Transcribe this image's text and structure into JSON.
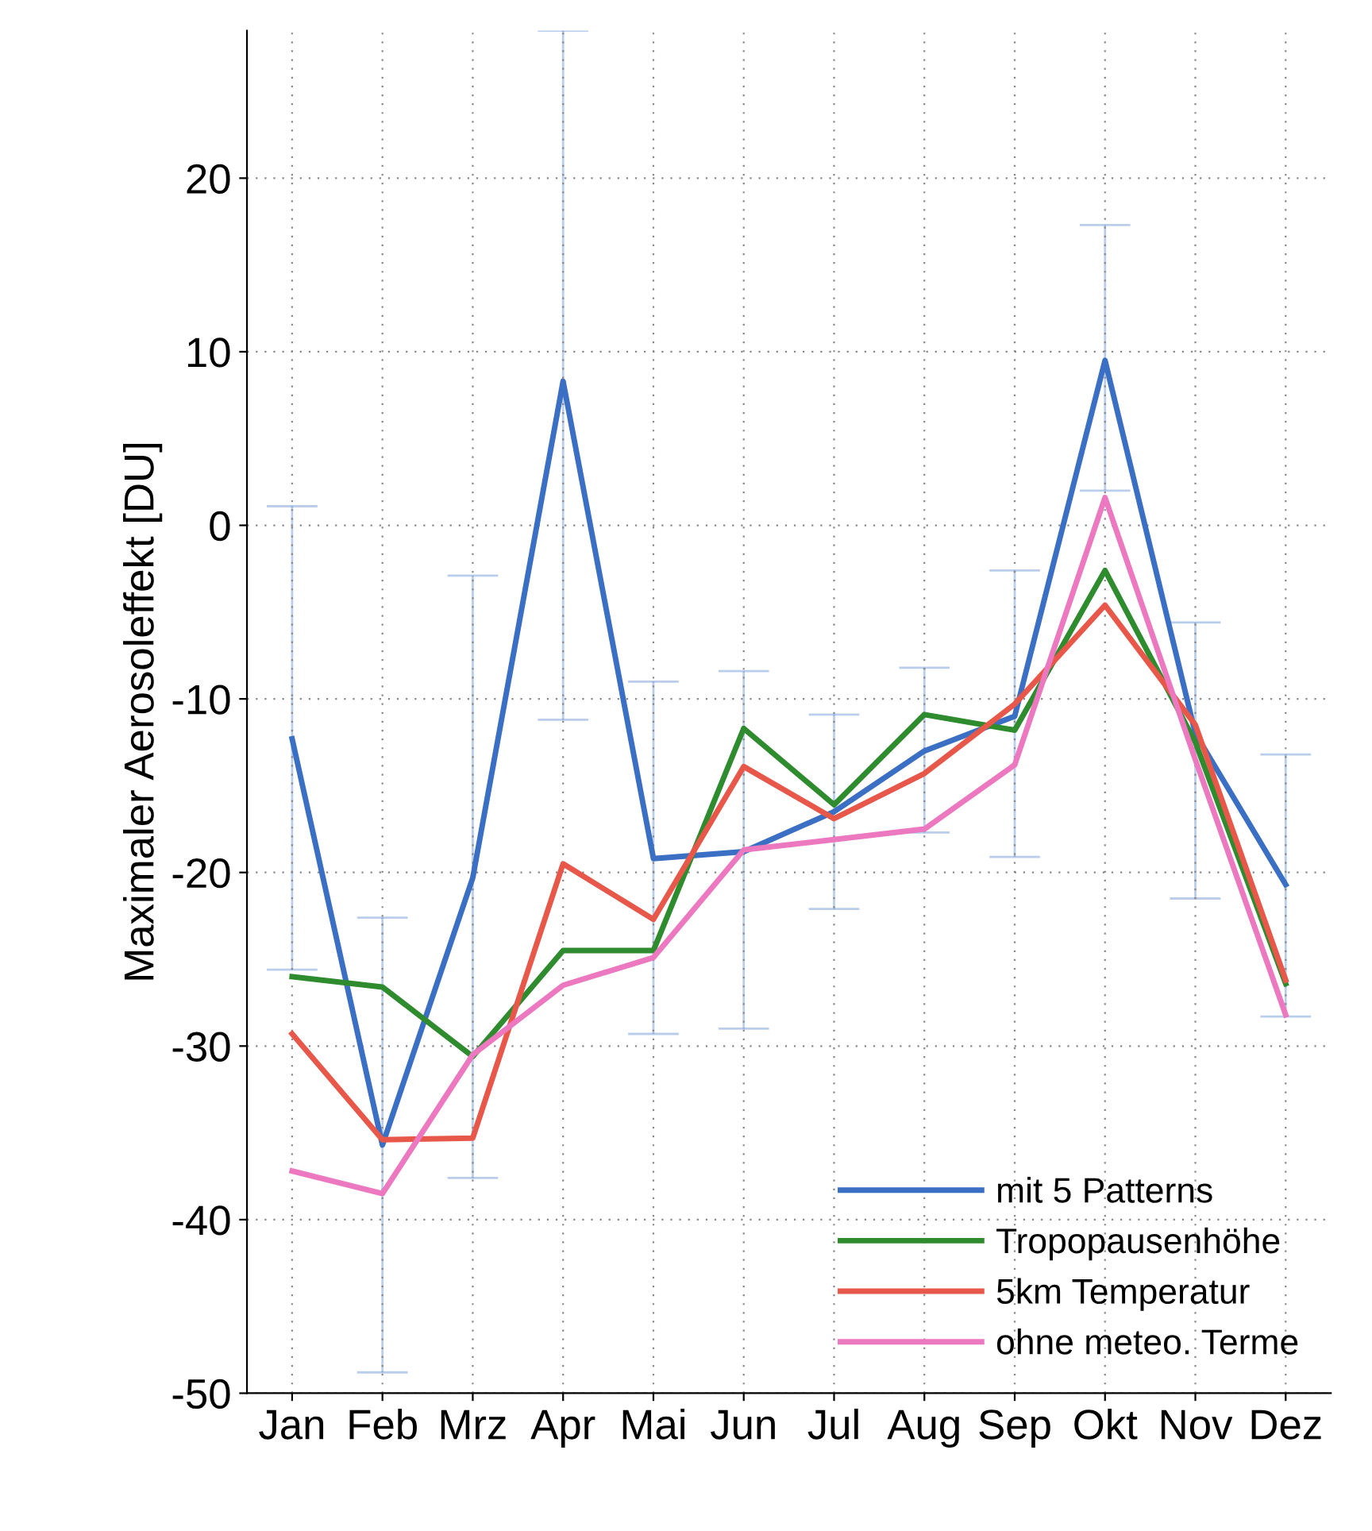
{
  "chart_data": {
    "type": "line",
    "ylabel": "Maximaler Aerosoleffekt [DU]",
    "categories": [
      "Jan",
      "Feb",
      "Mrz",
      "Apr",
      "Mai",
      "Jun",
      "Jul",
      "Aug",
      "Sep",
      "Okt",
      "Nov",
      "Dez"
    ],
    "series": [
      {
        "name": "mit 5 Patterns",
        "color": "#3a6fc4",
        "values": [
          -12.3,
          -35.7,
          -20.3,
          8.3,
          -19.2,
          -18.8,
          -16.5,
          -13,
          -11,
          9.5,
          -12,
          -20.7
        ],
        "errors": [
          [
            -25.6,
            1.1
          ],
          [
            -48.8,
            -22.6
          ],
          [
            -37.6,
            -2.9
          ],
          [
            -11.2,
            28.5
          ],
          [
            -29.3,
            -9
          ],
          [
            -29,
            -8.4
          ],
          [
            -22.1,
            -10.9
          ],
          [
            -17.7,
            -8.2
          ],
          [
            -19.1,
            -2.6
          ],
          [
            2,
            17.3
          ],
          [
            -21.5,
            -5.6
          ],
          [
            -28.3,
            -13.2
          ]
        ]
      },
      {
        "name": "Tropopausenhöhe",
        "color": "#2e8b2e",
        "values": [
          -26,
          -26.6,
          -30.6,
          -24.5,
          -24.5,
          -11.7,
          -16.1,
          -10.9,
          -11.8,
          -2.6,
          -12.5,
          -26.4
        ]
      },
      {
        "name": "5km Temperatur",
        "color": "#e8584a",
        "values": [
          -29.3,
          -35.4,
          -35.3,
          -19.5,
          -22.7,
          -13.9,
          -16.9,
          -14.3,
          -10.3,
          -4.6,
          -11.5,
          -26.2
        ]
      },
      {
        "name": "ohne meteo. Terme",
        "color": "#ec78c0",
        "values": [
          -37.2,
          -38.5,
          -30.5,
          -26.5,
          -24.9,
          -18.7,
          -18.1,
          -17.5,
          -13.8,
          1.6,
          -13.5,
          -28.2
        ]
      }
    ],
    "ylim": [
      -50,
      28.5
    ],
    "yticks": [
      -50,
      -40,
      -30,
      -20,
      -10,
      0,
      10,
      20
    ],
    "grid": true,
    "legend": "bottom right",
    "line_style": "solid",
    "marker": "none"
  }
}
